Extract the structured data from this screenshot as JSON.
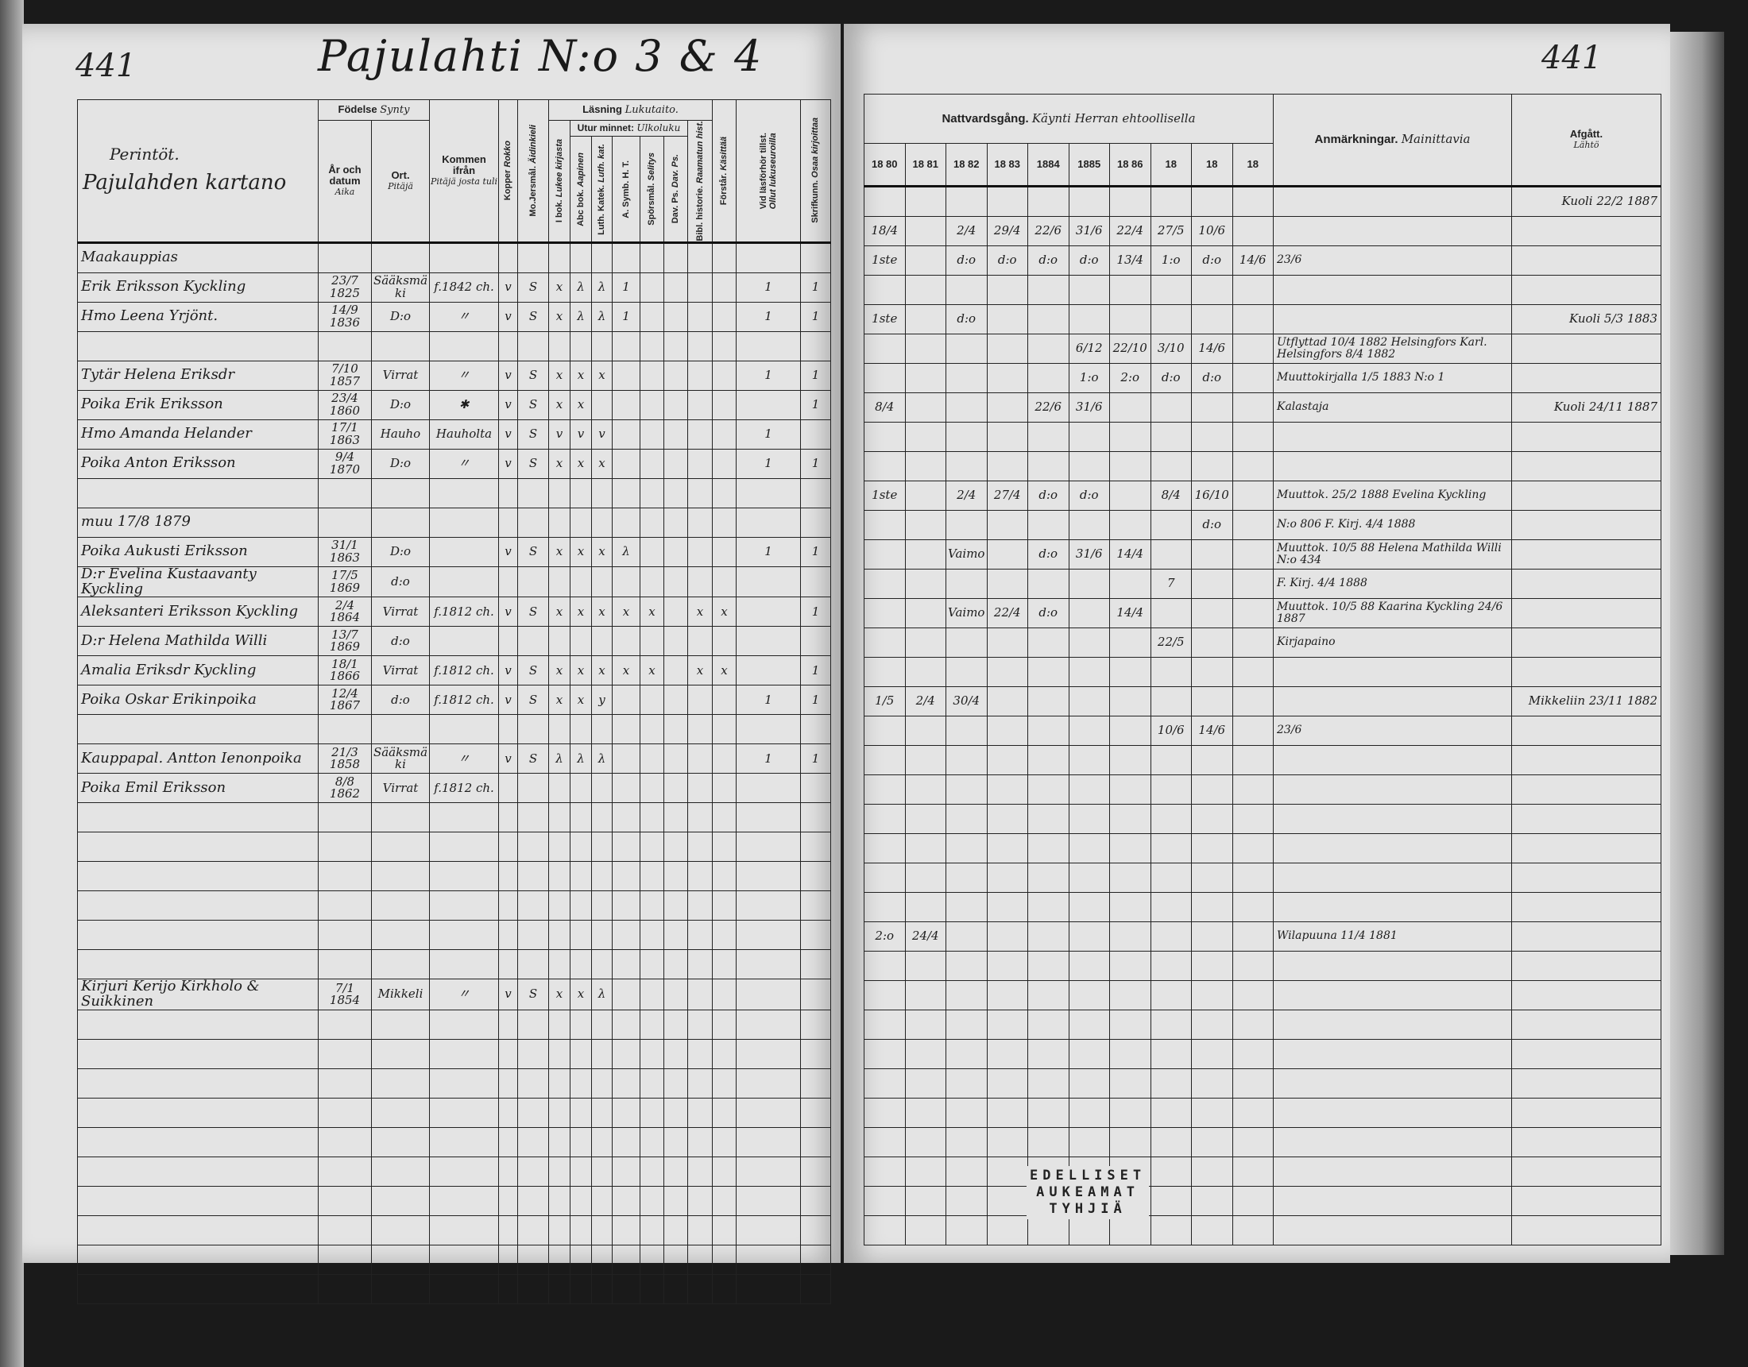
{
  "left_page": {
    "page_number": "441",
    "title": "Pajulahti N:o 3 & 4",
    "name_header": {
      "line1": "Perintöt.",
      "line2": "Pajulahden kartano"
    },
    "headers": {
      "fodelse": "Födelse",
      "fodelse_fi": "Synty",
      "ar": "År och datum",
      "ar_fi": "Aika",
      "ort": "Ort.",
      "ort_fi": "Pitäjä",
      "kommen": "Kommen ifrån",
      "kommen_fi": "Pitäjä josta tuli",
      "kopper": "Kopper",
      "kopper_fi": "Rokko",
      "mojersmal": "Mo.Jersmål.",
      "mojersmal_fi": "Äidinkieli",
      "lasning": "Läsning",
      "lasning_fi": "Lukutaito.",
      "utur_minnet": "Utur minnet:",
      "utur_minnet_fi": "Ulkoluku",
      "ibok": "I bok.",
      "ibok_fi": "Lukee kirjasta",
      "abc": "Abc bok.",
      "abc_fi": "Aapinen",
      "luth": "Luth. Katek.",
      "luth_fi": "Luth. kat.",
      "asymb": "A. Symb. H. T.",
      "sporsmal": "Spörsmål.",
      "sporsmal_fi": "Selitys",
      "dar": "Dav. Ps.",
      "dar_fi": "Dav. Ps.",
      "bibl": "Bibl. historie.",
      "bibl_fi": "Raamatun hist.",
      "forstar": "Förstår.",
      "forstar_fi": "Käsittää",
      "vid": "Vid läsförhör tillst.",
      "vid_fi": "Ollut lukuseuroilla",
      "skrift": "Skrifkunn.",
      "skrift_fi": "Osaa kirjoittaa"
    },
    "rows": [
      {
        "name": "Maakauppias"
      },
      {
        "name": "Erik Eriksson Kyckling",
        "year": "23/7 1825",
        "place": "Sääksmäki",
        "from": "f.1842 ch.",
        "kopper": "v",
        "mojersmal": "S",
        "ibok": "x",
        "abc": "λ",
        "luth": "λ",
        "asymb": "1",
        "vid": "1",
        "skrift": "1"
      },
      {
        "name": "Hmo Leena Yrjönt.",
        "year": "14/9 1836",
        "place": "D:o",
        "from": "〃",
        "kopper": "v",
        "mojersmal": "S",
        "ibok": "x",
        "abc": "λ",
        "luth": "λ",
        "asymb": "1",
        "vid": "1",
        "skrift": "1"
      },
      {},
      {
        "name": "Tytär Helena Eriksdr",
        "year": "7/10 1857",
        "place": "Virrat",
        "from": "〃",
        "kopper": "v",
        "mojersmal": "S",
        "ibok": "x",
        "abc": "x",
        "luth": "x",
        "vid": "1",
        "skrift": "1"
      },
      {
        "name": "Poika Erik Eriksson",
        "year": "23/4 1860",
        "place": "D:o",
        "from": "✱",
        "kopper": "v",
        "mojersmal": "S",
        "ibok": "x",
        "abc": "x",
        "skrift": "1"
      },
      {
        "name": "Hmo Amanda Helander",
        "year": "17/1 1863",
        "place": "Hauho",
        "from": "Hauholta",
        "kopper": "v",
        "mojersmal": "S",
        "ibok": "v",
        "abc": "v",
        "luth": "v",
        "vid": "1"
      },
      {
        "name": "Poika Anton Eriksson",
        "year": "9/4 1870",
        "place": "D:o",
        "from": "〃",
        "kopper": "v",
        "mojersmal": "S",
        "ibok": "x",
        "abc": "x",
        "luth": "x",
        "vid": "1",
        "skrift": "1"
      },
      {},
      {
        "name": "muu 17/8 1879"
      },
      {
        "name": "Poika Aukusti Eriksson",
        "year": "31/1 1863",
        "place": "D:o",
        "kopper": "v",
        "mojersmal": "S",
        "ibok": "x",
        "abc": "x",
        "luth": "x",
        "asymb": "λ",
        "vid": "1",
        "skrift": "1"
      },
      {
        "name": "D:r Evelina Kustaavanty Kyckling",
        "year": "17/5 1869",
        "place": "d:o"
      },
      {
        "name": "Aleksanteri Eriksson Kyckling",
        "year": "2/4 1864",
        "place": "Virrat",
        "from": "f.1812 ch.",
        "kopper": "v",
        "mojersmal": "S",
        "ibok": "x",
        "abc": "x",
        "luth": "x",
        "asymb": "x",
        "sporsmal": "x",
        "bibl": "x",
        "forstar": "x",
        "skrift": "1"
      },
      {
        "name": "D:r Helena Mathilda Willi",
        "year": "13/7 1869",
        "place": "d:o"
      },
      {
        "name": "Amalia Eriksdr Kyckling",
        "year": "18/1 1866",
        "place": "Virrat",
        "from": "f.1812 ch.",
        "kopper": "v",
        "mojersmal": "S",
        "ibok": "x",
        "abc": "x",
        "luth": "x",
        "asymb": "x",
        "sporsmal": "x",
        "bibl": "x",
        "forstar": "x",
        "skrift": "1"
      },
      {
        "name": "Poika Oskar Erikinpoika",
        "year": "12/4 1867",
        "place": "d:o",
        "from": "f.1812 ch.",
        "kopper": "v",
        "mojersmal": "S",
        "ibok": "x",
        "abc": "x",
        "luth": "y",
        "vid": "1",
        "skrift": "1"
      },
      {},
      {
        "name": "Kauppapal. Antton Ienonpoika",
        "year": "21/3 1858",
        "place": "Sääksmäki",
        "from": "〃",
        "kopper": "v",
        "mojersmal": "S",
        "ibok": "λ",
        "abc": "λ",
        "luth": "λ",
        "vid": "1",
        "skrift": "1"
      },
      {
        "name": "Poika Emil Eriksson",
        "year": "8/8 1862",
        "place": "Virrat",
        "from": "f.1812 ch."
      },
      {},
      {},
      {},
      {},
      {},
      {},
      {
        "name": "Kirjuri Kerijo Kirkholo & Suikkinen",
        "year": "7/1 1854",
        "place": "Mikkeli",
        "from": "〃",
        "kopper": "v",
        "mojersmal": "S",
        "ibok": "x",
        "abc": "x",
        "luth": "λ"
      }
    ]
  },
  "right_page": {
    "page_number": "441",
    "headers": {
      "nattvard": "Nattvardsgång.",
      "nattvard_fi": "Käynti Herran ehtoollisella",
      "years": [
        "18 80",
        "18 81",
        "18 82",
        "18 83",
        "1884",
        "1885",
        "18 86",
        "18",
        "18",
        "18"
      ],
      "anm": "Anmärkningar.",
      "anm_fi": "Mainittavia",
      "afgatt": "Afgått.",
      "afgatt_fi": "Lähtö"
    },
    "rows": [
      {
        "afgatt": "Kuoli 22/2 1887"
      },
      {
        "comm": [
          "18/4",
          "",
          "2/4",
          "29/4",
          "22/6",
          "31/6",
          "22/4",
          "27/5",
          "10/6",
          ""
        ]
      },
      {
        "comm": [
          "1ste",
          "",
          "d:o",
          "d:o",
          "d:o",
          "d:o",
          "13/4",
          "1:o",
          "d:o",
          "14/6"
        ],
        "remarks": "23/6"
      },
      {},
      {
        "comm": [
          "1ste",
          "",
          "d:o",
          "",
          "",
          "",
          "",
          "",
          "",
          ""
        ],
        "afgatt": "Kuoli 5/3 1883"
      },
      {
        "comm": [
          "",
          "",
          "",
          "",
          "",
          "6/12",
          "22/10",
          "3/10",
          "14/6",
          ""
        ],
        "remarks": "Utflyttad 10/4 1882 Helsingfors Karl. Helsingfors 8/4 1882"
      },
      {
        "comm": [
          "",
          "",
          "",
          "",
          "",
          "1:o",
          "2:o",
          "d:o",
          "d:o",
          ""
        ],
        "remarks": "Muuttokirjalla 1/5 1883 N:o 1"
      },
      {
        "comm": [
          "8/4",
          "",
          "",
          "",
          "22/6",
          "31/6",
          "",
          "",
          "",
          ""
        ],
        "remarks": "Kalastaja",
        "afgatt": "Kuoli 24/11 1887"
      },
      {},
      {},
      {
        "comm": [
          "1ste",
          "",
          "2/4",
          "27/4",
          "d:o",
          "d:o",
          "",
          "8/4",
          "16/10",
          ""
        ],
        "remarks": "Muuttok. 25/2 1888 Evelina Kyckling"
      },
      {
        "comm": [
          "",
          "",
          "",
          "",
          "",
          "",
          "",
          "",
          "d:o",
          ""
        ],
        "remarks": "N:o 806 F. Kirj. 4/4 1888"
      },
      {
        "comm": [
          "",
          "",
          "Vaimo",
          "",
          "d:o",
          "31/6",
          "14/4",
          "",
          "",
          ""
        ],
        "remarks": "Muuttok. 10/5 88 Helena Mathilda Willi N:o 434"
      },
      {
        "comm": [
          "",
          "",
          "",
          "",
          "",
          "",
          "",
          "7",
          "",
          ""
        ],
        "remarks": "F. Kirj. 4/4 1888"
      },
      {
        "comm": [
          "",
          "",
          "Vaimo",
          "22/4",
          "d:o",
          "",
          "14/4",
          "",
          "",
          ""
        ],
        "remarks": "Muuttok. 10/5 88 Kaarina Kyckling 24/6 1887"
      },
      {
        "comm": [
          "",
          "",
          "",
          "",
          "",
          "",
          "",
          "22/5",
          "",
          ""
        ],
        "remarks": "Kirjapaino"
      },
      {},
      {
        "comm": [
          "1/5",
          "2/4",
          "30/4",
          "",
          "",
          "",
          "",
          "",
          "",
          ""
        ],
        "afgatt": "Mikkeliin 23/11 1882"
      },
      {
        "comm": [
          "",
          "",
          "",
          "",
          "",
          "",
          "",
          "10/6",
          "14/6",
          ""
        ],
        "remarks": "23/6"
      },
      {},
      {},
      {},
      {},
      {},
      {},
      {
        "comm": [
          "2:o",
          "24/4",
          "",
          "",
          "",
          "",
          "",
          "",
          "",
          ""
        ],
        "remarks": "Wilapuuna 11/4 1881"
      }
    ]
  },
  "stamp": {
    "line1": "EDELLISET",
    "line2": "AUKEAMAT",
    "line3": "TYHJIÄ"
  },
  "colors": {
    "paper": "#e4e4e4",
    "ink": "#1c1c1c",
    "background": "#1a1a1a"
  }
}
